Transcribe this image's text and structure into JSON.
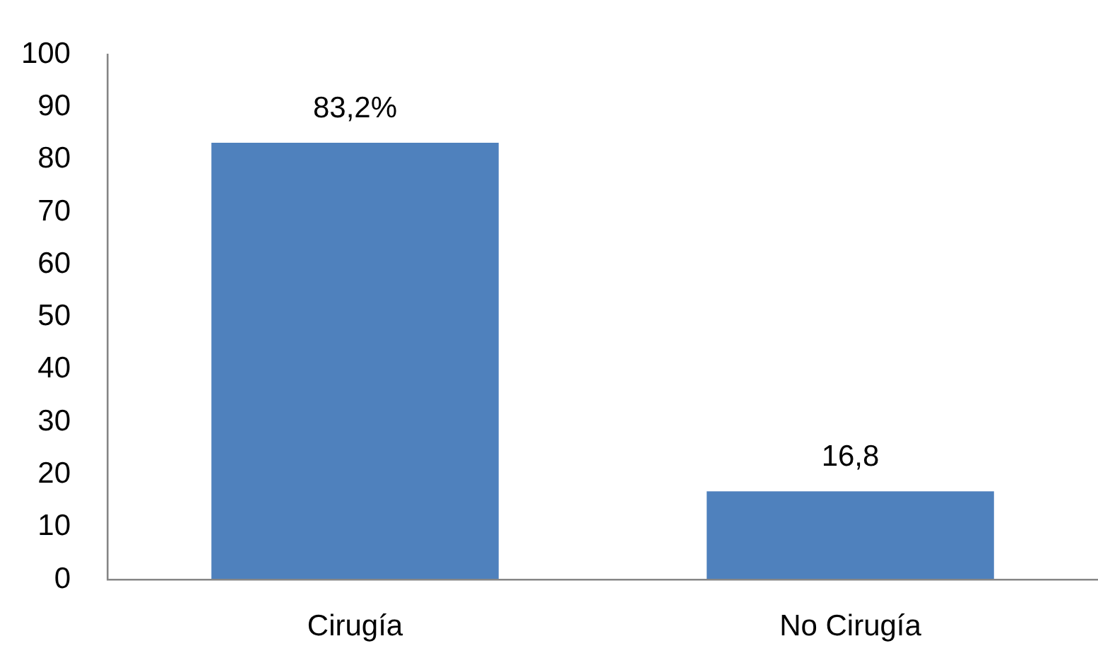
{
  "chart_data": {
    "type": "bar",
    "categories": [
      "Cirugía",
      "No Cirugía"
    ],
    "values": [
      83.2,
      16.8
    ],
    "value_labels": [
      "83,2%",
      "16,8"
    ],
    "color": "#4f81bd",
    "ylim": [
      0,
      100
    ],
    "yticks": [
      0,
      10,
      20,
      30,
      40,
      50,
      60,
      70,
      80,
      90,
      100
    ]
  }
}
